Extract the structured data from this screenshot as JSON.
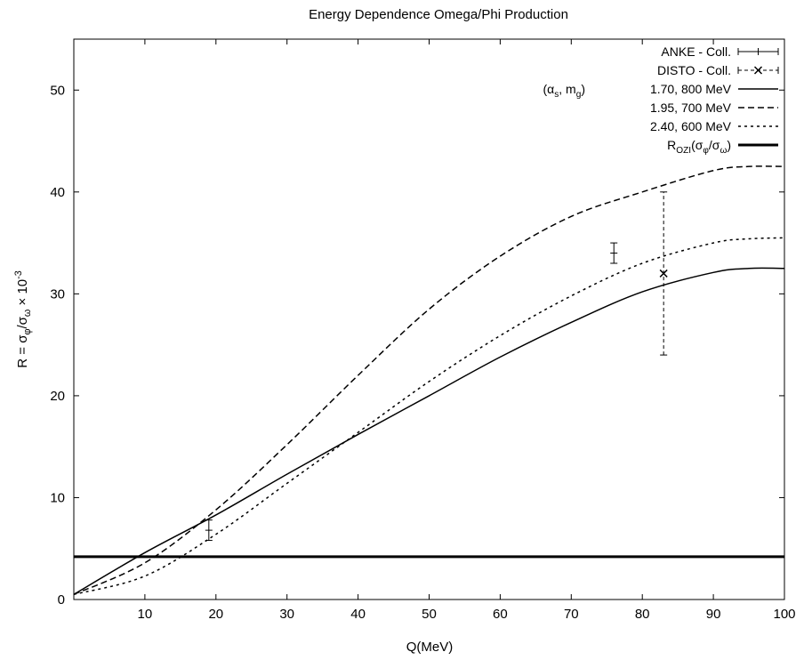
{
  "chart_data": {
    "type": "line",
    "title": "Energy Dependence Omega/Phi Production",
    "xlabel": "Q(MeV)",
    "ylabel": "R = σ_φ/σ_ω × 10^-3",
    "xlim": [
      0,
      100
    ],
    "ylim": [
      0,
      55
    ],
    "x_ticks": [
      10,
      20,
      30,
      40,
      50,
      60,
      70,
      80,
      90,
      100
    ],
    "y_ticks": [
      0,
      10,
      20,
      30,
      40,
      50
    ],
    "grid": false,
    "legend_position": "top-right",
    "legend_parameter_label": "(α_s, m_g)",
    "series": [
      {
        "name": "1.70, 800 MeV",
        "style": "solid",
        "x": [
          0,
          10,
          20,
          30,
          40,
          50,
          60,
          70,
          80,
          90,
          95,
          100
        ],
        "y": [
          0.5,
          4.6,
          8.3,
          12.3,
          16.2,
          20.0,
          23.8,
          27.2,
          30.2,
          32.1,
          32.5,
          32.5
        ]
      },
      {
        "name": "1.95, 700 MeV",
        "style": "dashed",
        "x": [
          0,
          10,
          20,
          30,
          40,
          50,
          60,
          70,
          80,
          90,
          95,
          100
        ],
        "y": [
          0.5,
          3.6,
          8.8,
          15.2,
          22.0,
          28.5,
          33.7,
          37.6,
          40.0,
          42.1,
          42.5,
          42.5
        ]
      },
      {
        "name": "2.40, 600 MeV",
        "style": "dotted",
        "x": [
          0,
          10,
          20,
          30,
          40,
          50,
          60,
          70,
          80,
          90,
          95,
          100
        ],
        "y": [
          0.5,
          2.3,
          6.4,
          11.4,
          16.4,
          21.4,
          25.9,
          29.8,
          33.0,
          35.0,
          35.4,
          35.5
        ]
      },
      {
        "name": "R_OZI(σ_φ/σ_ω)",
        "style": "thick",
        "x": [
          0,
          100
        ],
        "y": [
          4.2,
          4.2
        ]
      }
    ],
    "data_points": [
      {
        "name": "ANKE - Coll.",
        "marker": "plus",
        "points": [
          {
            "x": 19,
            "y": 6.8,
            "ylow": 5.8,
            "yhigh": 7.8
          },
          {
            "x": 76,
            "y": 34.0,
            "ylow": 33.0,
            "yhigh": 35.0
          }
        ]
      },
      {
        "name": "DISTO - Coll.",
        "marker": "x",
        "points": [
          {
            "x": 83,
            "y": 32.0,
            "ylow": 24.0,
            "yhigh": 40.0
          }
        ]
      }
    ]
  },
  "colors": {
    "line": "#000000",
    "background": "#ffffff"
  }
}
